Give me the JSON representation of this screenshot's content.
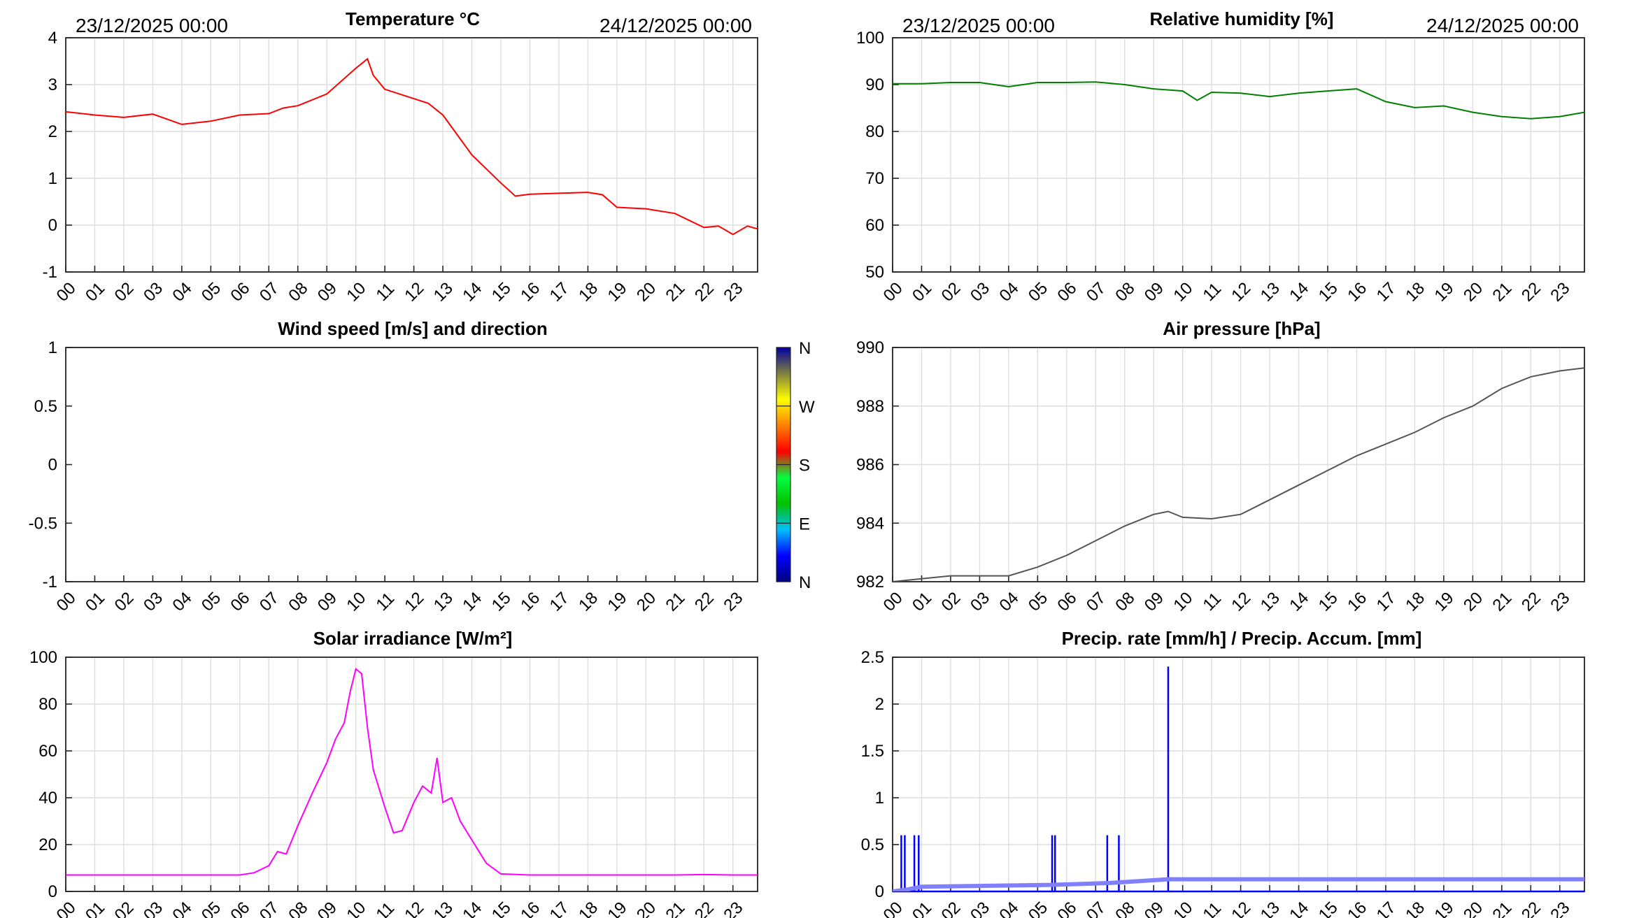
{
  "period": {
    "start": "23/12/2025 00:00",
    "end": "24/12/2025 00:00"
  },
  "x_tick_labels": [
    "00",
    "01",
    "02",
    "03",
    "04",
    "05",
    "06",
    "07",
    "08",
    "09",
    "10",
    "11",
    "12",
    "13",
    "14",
    "15",
    "16",
    "17",
    "18",
    "19",
    "20",
    "21",
    "22",
    "23"
  ],
  "chart_data": [
    {
      "id": "temperature",
      "type": "line",
      "title": "Temperature °C",
      "ylim": [
        -1,
        4
      ],
      "yticks": [
        "-1",
        "0",
        "1",
        "2",
        "3",
        "4"
      ],
      "grid": true,
      "color": "#ff0000",
      "x_unit": "hour",
      "x": [
        0,
        1,
        2,
        3,
        4,
        5,
        6,
        7,
        7.5,
        8,
        9,
        10,
        10.4,
        10.6,
        11,
        12,
        12.5,
        13,
        14,
        15,
        15.5,
        16,
        17,
        18,
        18.5,
        19,
        20,
        21,
        22,
        22.5,
        23,
        23.5,
        23.85
      ],
      "y": [
        2.42,
        2.35,
        2.3,
        2.37,
        2.15,
        2.22,
        2.35,
        2.38,
        2.5,
        2.55,
        2.8,
        3.35,
        3.55,
        3.2,
        2.9,
        2.7,
        2.6,
        2.35,
        1.5,
        0.9,
        0.62,
        0.66,
        0.68,
        0.7,
        0.65,
        0.38,
        0.35,
        0.25,
        -0.05,
        -0.02,
        -0.2,
        -0.02,
        -0.08
      ]
    },
    {
      "id": "humidity",
      "type": "line",
      "title": "Relative humidity [%]",
      "ylim": [
        50,
        105
      ],
      "yticks": [
        "50",
        "60",
        "70",
        "80",
        "90",
        "100"
      ],
      "grid": true,
      "color": "#008000",
      "x_unit": "hour",
      "x": [
        0,
        1,
        2,
        3,
        3.5,
        4,
        5,
        6,
        7,
        8,
        9,
        10,
        10.5,
        11,
        12,
        13,
        14,
        15,
        16,
        17,
        18,
        19,
        20,
        21,
        22,
        23,
        23.85
      ],
      "y": [
        94.2,
        94.2,
        94.5,
        94.5,
        94.0,
        93.5,
        94.5,
        94.5,
        94.6,
        94.0,
        93.0,
        92.5,
        90.3,
        92.2,
        92.0,
        91.2,
        92.0,
        92.5,
        93.0,
        90.0,
        88.6,
        89.0,
        87.5,
        86.5,
        86.0,
        86.5,
        87.5
      ]
    },
    {
      "id": "wind",
      "type": "scatter",
      "title": "Wind speed [m/s] and direction",
      "ylim": [
        -1,
        1
      ],
      "yticks": [
        "-1",
        "-0.5",
        "0",
        "0.5",
        "1"
      ],
      "grid": false,
      "x_unit": "hour",
      "x": [],
      "y": [],
      "colorbar": {
        "labels": [
          "N",
          "W",
          "S",
          "E",
          "N"
        ],
        "colors": [
          "#00007f",
          "#0000ff",
          "#00c0ff",
          "#00c000",
          "#00ff40",
          "#ff0000",
          "#ff8000",
          "#ffff00",
          "#808040",
          "#0000a0"
        ]
      }
    },
    {
      "id": "pressure",
      "type": "line",
      "title": "Air pressure [hPa]",
      "ylim": [
        982,
        990
      ],
      "yticks": [
        "982",
        "984",
        "986",
        "988",
        "990"
      ],
      "grid": true,
      "color": "#555555",
      "x_unit": "hour",
      "x": [
        0,
        1,
        2,
        3,
        4,
        5,
        6,
        7,
        8,
        9,
        9.5,
        10,
        11,
        12,
        13,
        14,
        15,
        16,
        17,
        18,
        19,
        20,
        21,
        22,
        23,
        23.85
      ],
      "y": [
        982.0,
        982.1,
        982.2,
        982.2,
        982.2,
        982.5,
        982.9,
        983.4,
        983.9,
        984.3,
        984.4,
        984.2,
        984.15,
        984.3,
        984.8,
        985.3,
        985.8,
        986.3,
        986.7,
        987.1,
        987.6,
        988.0,
        988.6,
        989.0,
        989.2,
        989.3
      ]
    },
    {
      "id": "solar",
      "type": "line",
      "title": "Solar irradiance [W/m²]",
      "ylim": [
        0,
        100
      ],
      "yticks": [
        "0",
        "20",
        "40",
        "60",
        "80",
        "100"
      ],
      "grid": true,
      "color": "#ff00ff",
      "x_unit": "hour",
      "x": [
        0,
        1,
        2,
        3,
        4,
        5,
        6,
        6.5,
        7,
        7.3,
        7.6,
        8,
        8.5,
        9,
        9.3,
        9.6,
        9.8,
        10,
        10.2,
        10.4,
        10.6,
        11,
        11.3,
        11.6,
        12,
        12.3,
        12.6,
        12.8,
        13,
        13.3,
        13.6,
        14,
        14.5,
        15,
        16,
        17,
        18,
        19,
        20,
        21,
        22,
        23,
        23.85
      ],
      "y": [
        7,
        7,
        7,
        7,
        7,
        7,
        7,
        8,
        11,
        17,
        16,
        28,
        42,
        55,
        65,
        72,
        85,
        95,
        93,
        70,
        52,
        36,
        25,
        26,
        38,
        45,
        42,
        57,
        38,
        40,
        30,
        22,
        12,
        7.5,
        7,
        7,
        7,
        7,
        7,
        7,
        7.2,
        7,
        7
      ]
    },
    {
      "id": "precip",
      "type": "line",
      "title": "Precip. rate [mm/h] / Precip. Accum. [mm]",
      "ylim": [
        0,
        2.5
      ],
      "yticks": [
        "0",
        "0.5",
        "1",
        "1.5",
        "2",
        "2.5"
      ],
      "grid": true,
      "x_unit": "hour",
      "series": [
        {
          "name": "rate",
          "color": "#0000ff",
          "spikes": [
            [
              0.3,
              0.6
            ],
            [
              0.42,
              0.6
            ],
            [
              0.75,
              0.6
            ],
            [
              0.9,
              0.6
            ],
            [
              5.5,
              0.6
            ],
            [
              5.6,
              0.6
            ],
            [
              7.4,
              0.6
            ],
            [
              7.8,
              0.6
            ],
            [
              9.5,
              2.4
            ]
          ]
        },
        {
          "name": "accumulation",
          "color": "#8080ff",
          "x": [
            0,
            0.5,
            1,
            5.5,
            7.5,
            9.5,
            23.85
          ],
          "y": [
            0.0,
            0.02,
            0.05,
            0.07,
            0.09,
            0.13,
            0.13
          ]
        }
      ]
    }
  ]
}
